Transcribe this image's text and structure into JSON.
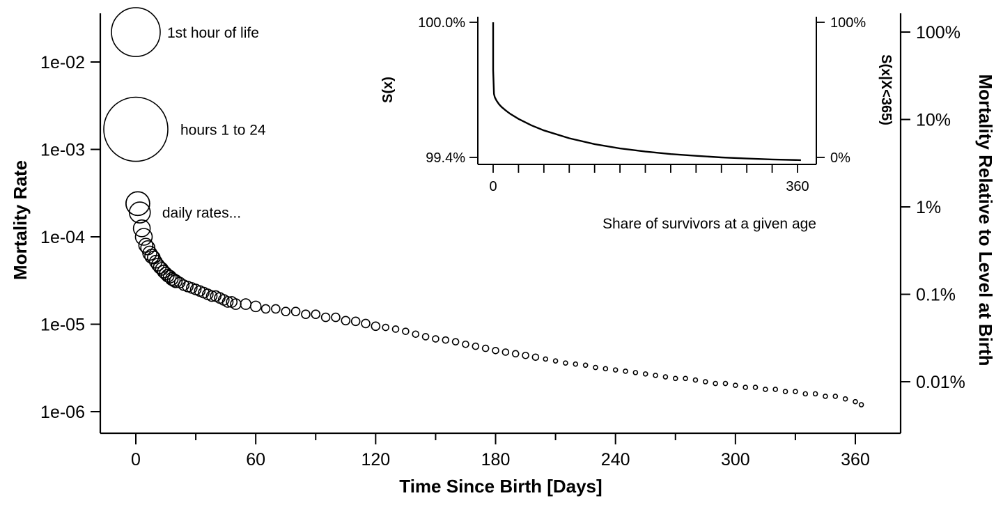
{
  "chart_data": {
    "type": "scatter",
    "xlabel": "Time Since Birth [Days]",
    "ylabel": "Mortality Rate",
    "ylabel_right": "Mortality Relative to Level at Birth",
    "xlim": [
      -6,
      366
    ],
    "ylim": [
      5.5e-07,
      0.036
    ],
    "y_scale": "log",
    "x_ticks": [
      0,
      60,
      120,
      180,
      240,
      300,
      360
    ],
    "x_tick_labels": [
      "0",
      "60",
      "120",
      "180",
      "240",
      "300",
      "360"
    ],
    "x_minor_ticks": [
      30,
      90,
      150,
      210,
      270,
      330
    ],
    "y_ticks": [
      1e-06,
      1e-05,
      0.0001,
      0.001,
      0.01
    ],
    "y_tick_labels": [
      "1e-06",
      "1e-05",
      "1e-04",
      "1e-03",
      "1e-02"
    ],
    "right_axis": {
      "reference_rate": 0.022,
      "ticks": [
        1,
        0.1,
        0.01,
        0.001,
        0.0001
      ],
      "tick_labels": [
        "100%",
        "10%",
        "1%",
        "0.1%",
        "0.01%"
      ]
    },
    "grid": false,
    "marker": "open-circle",
    "marker_size_note": "circle size proportional to the width of the time interval",
    "annotations": [
      {
        "text": "1st hour of life",
        "x": 0,
        "y": 0.022,
        "marker_size": "large"
      },
      {
        "text": "hours 1 to 24",
        "x": 0,
        "y": 0.0017,
        "marker_size": "largest"
      },
      {
        "text": "daily rates...",
        "x": 1,
        "y": 0.00024,
        "marker_size": "medium"
      }
    ],
    "series": [
      {
        "x": [
          1,
          2,
          3,
          4,
          5,
          6,
          7,
          8,
          9,
          10,
          11,
          12,
          13,
          14,
          15,
          16,
          17,
          18,
          19,
          20,
          22,
          24,
          26,
          28,
          30,
          32,
          34,
          36,
          38,
          40,
          42,
          44,
          46,
          48,
          50,
          55,
          60,
          65,
          70,
          75,
          80,
          85,
          90,
          95,
          100,
          105,
          110,
          115,
          120,
          125,
          130,
          135,
          140,
          145,
          150,
          155,
          160,
          165,
          170,
          175,
          180,
          185,
          190,
          195,
          200,
          205,
          210,
          215,
          220,
          225,
          230,
          235,
          240,
          245,
          250,
          255,
          260,
          265,
          270,
          275,
          280,
          285,
          290,
          295,
          300,
          305,
          310,
          315,
          320,
          325,
          330,
          335,
          340,
          345,
          350,
          355,
          360,
          363
        ],
        "y": [
          0.00024,
          0.00019,
          0.000125,
          0.0001,
          8e-05,
          7.5e-05,
          6.5e-05,
          6e-05,
          5.8e-05,
          5.2e-05,
          4.8e-05,
          4.5e-05,
          4.3e-05,
          4e-05,
          3.8e-05,
          3.6e-05,
          3.5e-05,
          3.3e-05,
          3.2e-05,
          3.1e-05,
          3e-05,
          2.8e-05,
          2.7e-05,
          2.6e-05,
          2.5e-05,
          2.4e-05,
          2.3e-05,
          2.2e-05,
          2.1e-05,
          2.1e-05,
          2e-05,
          1.9e-05,
          1.8e-05,
          1.8e-05,
          1.7e-05,
          1.7e-05,
          1.6e-05,
          1.5e-05,
          1.5e-05,
          1.4e-05,
          1.4e-05,
          1.3e-05,
          1.3e-05,
          1.2e-05,
          1.2e-05,
          1.1e-05,
          1.08e-05,
          1.02e-05,
          9.5e-06,
          9.2e-06,
          8.8e-06,
          8.3e-06,
          7.7e-06,
          7.2e-06,
          6.8e-06,
          6.6e-06,
          6.3e-06,
          5.9e-06,
          5.6e-06,
          5.3e-06,
          5e-06,
          4.8e-06,
          4.6e-06,
          4.4e-06,
          4.2e-06,
          4e-06,
          3.8e-06,
          3.6e-06,
          3.5e-06,
          3.4e-06,
          3.2e-06,
          3.1e-06,
          3e-06,
          2.9e-06,
          2.8e-06,
          2.7e-06,
          2.6e-06,
          2.5e-06,
          2.4e-06,
          2.4e-06,
          2.3e-06,
          2.2e-06,
          2.1e-06,
          2.1e-06,
          2e-06,
          1.9e-06,
          1.9e-06,
          1.8e-06,
          1.8e-06,
          1.7e-06,
          1.7e-06,
          1.6e-06,
          1.6e-06,
          1.5e-06,
          1.5e-06,
          1.4e-06,
          1.3e-06,
          1.2e-06
        ]
      }
    ],
    "inset": {
      "type": "line",
      "caption": "Share of survivors at a given age",
      "ylabel_left": "S(x)",
      "ylabel_right": "S(x|X<365)",
      "xlim": [
        -6,
        366
      ],
      "x_ticks": [
        0,
        360
      ],
      "x_tick_labels": [
        "0",
        "360"
      ],
      "x_minor_ticks": [
        30,
        60,
        90,
        120,
        150,
        180,
        210,
        240,
        270,
        300,
        330
      ],
      "ylim_left": [
        0.994,
        1.0
      ],
      "y_ticks_left": [
        0.994,
        1.0
      ],
      "y_tick_labels_left": [
        "99.4%",
        "100.0%"
      ],
      "y_ticks_right": [
        0,
        1
      ],
      "y_tick_labels_right": [
        "0%",
        "100%"
      ],
      "x": [
        0,
        0.04,
        1,
        2,
        4,
        7,
        10,
        15,
        20,
        30,
        45,
        60,
        90,
        120,
        150,
        180,
        210,
        240,
        270,
        300,
        330,
        365
      ],
      "y": [
        1.0,
        0.99788,
        0.99682,
        0.99667,
        0.99652,
        0.99636,
        0.99624,
        0.99608,
        0.99594,
        0.99571,
        0.99543,
        0.9952,
        0.99485,
        0.99459,
        0.9944,
        0.99426,
        0.99415,
        0.99407,
        0.994,
        0.99395,
        0.99391,
        0.99388
      ]
    }
  }
}
